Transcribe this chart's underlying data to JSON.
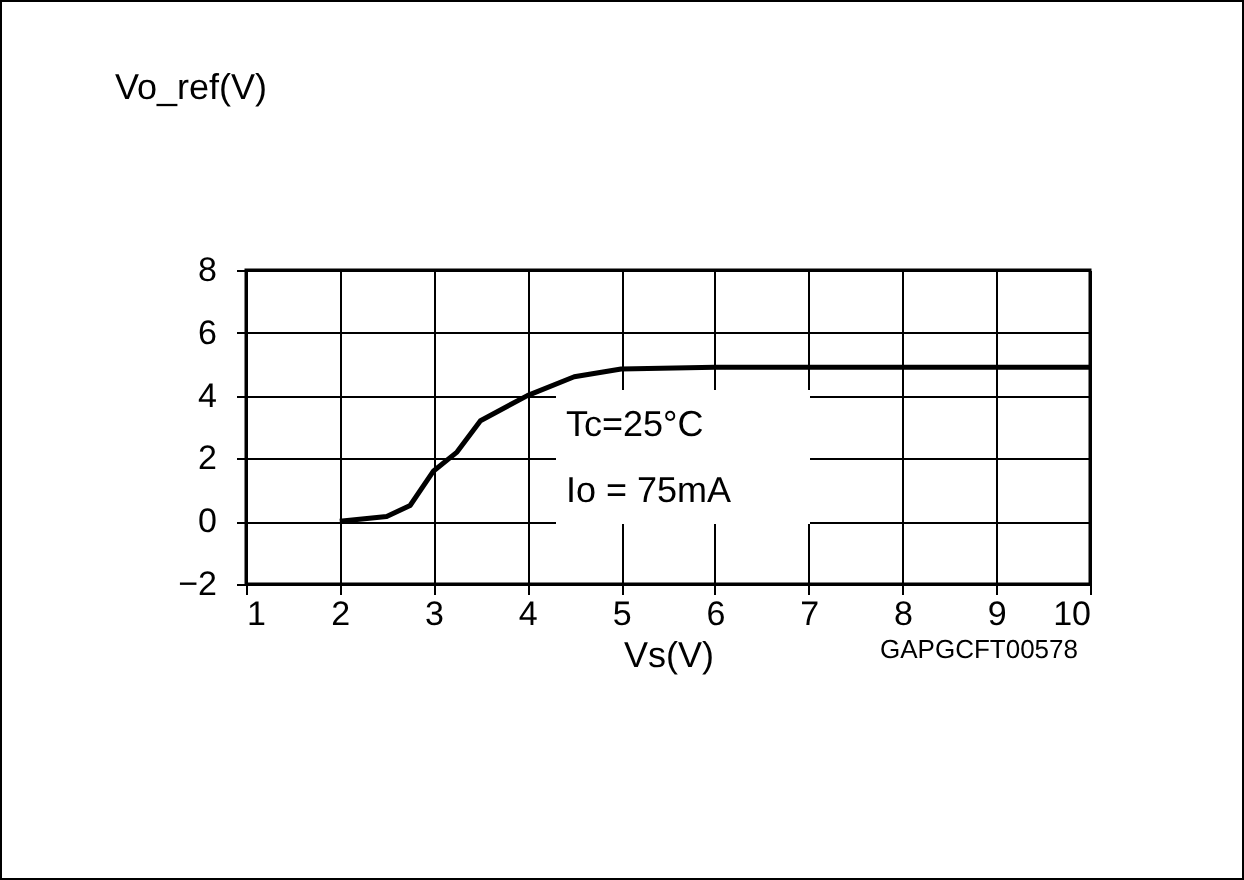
{
  "chart_data": {
    "type": "line",
    "ylabel": "Vo_ref(V)",
    "xlabel": "Vs(V)",
    "x": [
      2,
      2.5,
      2.75,
      3,
      3.25,
      3.5,
      4,
      4.5,
      5,
      6,
      10
    ],
    "series": [
      {
        "color": "#000000",
        "values": [
          0,
          0.15,
          0.5,
          1.6,
          2.2,
          3.2,
          4,
          4.6,
          4.85,
          4.9,
          4.9
        ]
      }
    ],
    "xlim": [
      1,
      10
    ],
    "xticks": [
      1,
      2,
      3,
      4,
      5,
      6,
      7,
      8,
      9,
      10
    ],
    "ylim": [
      -2,
      8
    ],
    "yticks": [
      -2,
      0,
      2,
      4,
      6,
      8
    ],
    "grid": true,
    "annotations": [
      "Tc=25°C",
      "Io = 75mA",
      "GAPGCFT00578"
    ]
  }
}
